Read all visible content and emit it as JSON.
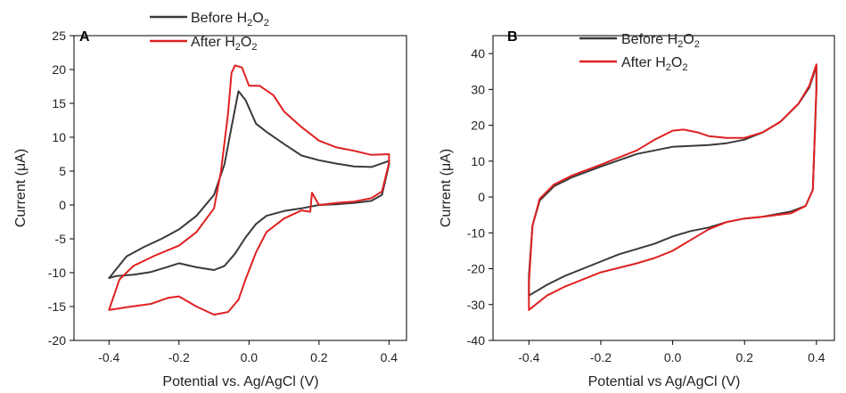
{
  "chart_data": [
    {
      "type": "line",
      "panel_label": "A",
      "xlabel": "Potential vs. Ag/AgCl (V)",
      "ylabel": "Current (μA)",
      "xlim": [
        -0.5,
        0.45
      ],
      "ylim": [
        -20,
        25
      ],
      "xticks": [
        "-0.4",
        "-0.2",
        "0.0",
        "0.2",
        "0.4"
      ],
      "yticks": [
        "25",
        "20",
        "15",
        "10",
        "5",
        "0",
        "-5",
        "-10",
        "-15",
        "-20"
      ],
      "legend_position": "top-center",
      "series": [
        {
          "name": "Before H2O2",
          "color": "#3a3a3a",
          "points": [
            [
              -0.4,
              -10.8
            ],
            [
              -0.35,
              -7.6
            ],
            [
              -0.3,
              -6.2
            ],
            [
              -0.25,
              -5.0
            ],
            [
              -0.2,
              -3.6
            ],
            [
              -0.15,
              -1.6
            ],
            [
              -0.1,
              1.5
            ],
            [
              -0.07,
              6.0
            ],
            [
              -0.05,
              11.5
            ],
            [
              -0.03,
              16.8
            ],
            [
              -0.01,
              15.5
            ],
            [
              0.02,
              12.0
            ],
            [
              0.05,
              10.8
            ],
            [
              0.1,
              9.0
            ],
            [
              0.15,
              7.3
            ],
            [
              0.2,
              6.6
            ],
            [
              0.25,
              6.1
            ],
            [
              0.3,
              5.7
            ],
            [
              0.35,
              5.6
            ],
            [
              0.4,
              6.5
            ],
            [
              0.4,
              6.0
            ],
            [
              0.38,
              1.5
            ],
            [
              0.35,
              0.6
            ],
            [
              0.3,
              0.3
            ],
            [
              0.25,
              0.1
            ],
            [
              0.2,
              0.0
            ],
            [
              0.15,
              -0.5
            ],
            [
              0.1,
              -0.9
            ],
            [
              0.05,
              -1.6
            ],
            [
              0.02,
              -2.8
            ],
            [
              -0.01,
              -4.8
            ],
            [
              -0.04,
              -7.2
            ],
            [
              -0.07,
              -9.0
            ],
            [
              -0.1,
              -9.6
            ],
            [
              -0.15,
              -9.2
            ],
            [
              -0.2,
              -8.6
            ],
            [
              -0.23,
              -9.1
            ],
            [
              -0.28,
              -9.9
            ],
            [
              -0.33,
              -10.3
            ],
            [
              -0.38,
              -10.5
            ],
            [
              -0.4,
              -10.8
            ]
          ]
        },
        {
          "name": "After H2O2",
          "color": "#e02020",
          "points": [
            [
              -0.4,
              -15.5
            ],
            [
              -0.37,
              -11.0
            ],
            [
              -0.33,
              -9.0
            ],
            [
              -0.27,
              -7.5
            ],
            [
              -0.2,
              -6.0
            ],
            [
              -0.15,
              -4.0
            ],
            [
              -0.1,
              -0.5
            ],
            [
              -0.08,
              5.0
            ],
            [
              -0.06,
              13.5
            ],
            [
              -0.05,
              19.5
            ],
            [
              -0.04,
              20.6
            ],
            [
              -0.02,
              20.3
            ],
            [
              0.0,
              17.6
            ],
            [
              0.03,
              17.6
            ],
            [
              0.07,
              16.2
            ],
            [
              0.1,
              13.8
            ],
            [
              0.15,
              11.5
            ],
            [
              0.2,
              9.5
            ],
            [
              0.25,
              8.5
            ],
            [
              0.3,
              8.0
            ],
            [
              0.35,
              7.4
            ],
            [
              0.4,
              7.5
            ],
            [
              0.4,
              6.2
            ],
            [
              0.38,
              2.0
            ],
            [
              0.35,
              1.0
            ],
            [
              0.3,
              0.5
            ],
            [
              0.25,
              0.3
            ],
            [
              0.2,
              0.0
            ],
            [
              0.18,
              1.8
            ],
            [
              0.175,
              -1.0
            ],
            [
              0.15,
              -0.8
            ],
            [
              0.1,
              -2.0
            ],
            [
              0.05,
              -4.0
            ],
            [
              0.02,
              -7.0
            ],
            [
              -0.01,
              -11.0
            ],
            [
              -0.03,
              -14.0
            ],
            [
              -0.06,
              -15.8
            ],
            [
              -0.1,
              -16.2
            ],
            [
              -0.15,
              -15.0
            ],
            [
              -0.2,
              -13.5
            ],
            [
              -0.23,
              -13.7
            ],
            [
              -0.28,
              -14.6
            ],
            [
              -0.35,
              -15.1
            ],
            [
              -0.4,
              -15.5
            ]
          ]
        }
      ]
    },
    {
      "type": "line",
      "panel_label": "B",
      "xlabel": "Potential vs Ag/AgCl (V)",
      "ylabel": "Current (μA)",
      "xlim": [
        -0.5,
        0.45
      ],
      "ylim": [
        -40,
        45
      ],
      "xticks": [
        "-0.4",
        "-0.2",
        "0.0",
        "0.2",
        "0.4"
      ],
      "yticks": [
        "40",
        "30",
        "20",
        "10",
        "0",
        "-10",
        "-20",
        "-30",
        "-40"
      ],
      "legend_position": "top-center",
      "series": [
        {
          "name": "Before H2O2",
          "color": "#3a3a3a",
          "points": [
            [
              -0.4,
              -27.5
            ],
            [
              -0.4,
              -22.0
            ],
            [
              -0.39,
              -8.0
            ],
            [
              -0.37,
              -1.0
            ],
            [
              -0.33,
              3.0
            ],
            [
              -0.28,
              5.5
            ],
            [
              -0.2,
              8.5
            ],
            [
              -0.1,
              12.0
            ],
            [
              0.0,
              14.0
            ],
            [
              0.1,
              14.5
            ],
            [
              0.15,
              15.0
            ],
            [
              0.2,
              16.0
            ],
            [
              0.25,
              18.0
            ],
            [
              0.3,
              21.0
            ],
            [
              0.35,
              26.0
            ],
            [
              0.38,
              30.5
            ],
            [
              0.4,
              36.5
            ],
            [
              0.4,
              30.0
            ],
            [
              0.39,
              2.0
            ],
            [
              0.37,
              -2.5
            ],
            [
              0.33,
              -4.0
            ],
            [
              0.25,
              -5.5
            ],
            [
              0.2,
              -6.0
            ],
            [
              0.15,
              -7.0
            ],
            [
              0.1,
              -8.5
            ],
            [
              0.05,
              -9.5
            ],
            [
              0.0,
              -11.0
            ],
            [
              -0.05,
              -13.0
            ],
            [
              -0.1,
              -14.5
            ],
            [
              -0.15,
              -16.0
            ],
            [
              -0.2,
              -18.0
            ],
            [
              -0.3,
              -22.0
            ],
            [
              -0.35,
              -24.5
            ],
            [
              -0.4,
              -27.5
            ]
          ]
        },
        {
          "name": "After H2O2",
          "color": "#e02020",
          "points": [
            [
              -0.4,
              -31.5
            ],
            [
              -0.4,
              -24.0
            ],
            [
              -0.39,
              -8.0
            ],
            [
              -0.37,
              -0.5
            ],
            [
              -0.33,
              3.5
            ],
            [
              -0.28,
              6.0
            ],
            [
              -0.2,
              9.0
            ],
            [
              -0.1,
              13.0
            ],
            [
              -0.05,
              16.0
            ],
            [
              0.0,
              18.5
            ],
            [
              0.03,
              18.8
            ],
            [
              0.07,
              18.0
            ],
            [
              0.1,
              17.0
            ],
            [
              0.15,
              16.5
            ],
            [
              0.2,
              16.5
            ],
            [
              0.25,
              18.0
            ],
            [
              0.3,
              21.0
            ],
            [
              0.35,
              26.0
            ],
            [
              0.38,
              31.0
            ],
            [
              0.4,
              37.0
            ],
            [
              0.4,
              30.0
            ],
            [
              0.39,
              2.0
            ],
            [
              0.37,
              -2.5
            ],
            [
              0.33,
              -4.5
            ],
            [
              0.25,
              -5.5
            ],
            [
              0.2,
              -6.0
            ],
            [
              0.15,
              -7.0
            ],
            [
              0.1,
              -9.0
            ],
            [
              0.05,
              -12.0
            ],
            [
              0.0,
              -15.0
            ],
            [
              -0.05,
              -17.0
            ],
            [
              -0.1,
              -18.5
            ],
            [
              -0.2,
              -21.0
            ],
            [
              -0.3,
              -25.0
            ],
            [
              -0.35,
              -27.5
            ],
            [
              -0.4,
              -31.5
            ]
          ]
        }
      ]
    }
  ]
}
